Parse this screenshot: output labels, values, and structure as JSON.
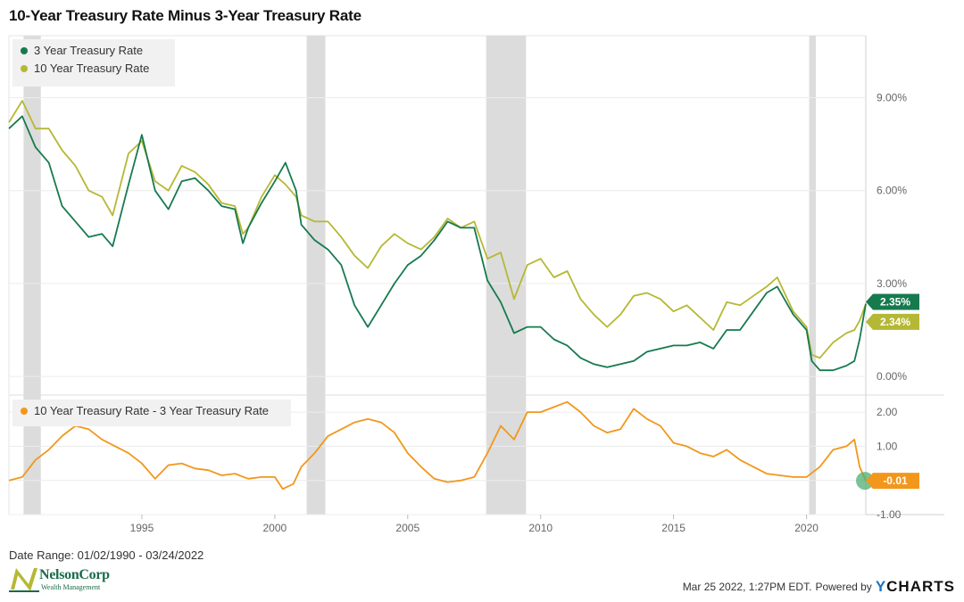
{
  "title": "10-Year Treasury Rate Minus 3-Year Treasury Rate",
  "date_range": "Date Range: 01/02/1990 - 03/24/2022",
  "footer": {
    "timestamp": "Mar 25 2022, 1:27PM EDT.",
    "powered_by": "Powered by",
    "brand_y": "Y",
    "brand_rest": "CHARTS"
  },
  "logo": {
    "name": "NelsonCorp",
    "sub": "Wealth Management"
  },
  "colors": {
    "three_year": "#167a4e",
    "ten_year": "#b5b834",
    "spread": "#f2971b",
    "recession": "#dcdcdc"
  },
  "chart_data": [
    {
      "type": "line",
      "title": "10-Year Treasury Rate Minus 3-Year Treasury Rate",
      "x_domain": [
        1990.0,
        2022.23
      ],
      "ylim": [
        -0.6,
        11.0
      ],
      "yticks": [
        {
          "value": 9,
          "label": "9.00%"
        },
        {
          "value": 6,
          "label": "6.00%"
        },
        {
          "value": 3,
          "label": "3.00%"
        },
        {
          "value": 0,
          "label": "0.00%"
        }
      ],
      "xticks": [
        {
          "value": 1995,
          "label": "1995"
        },
        {
          "value": 2000,
          "label": "2000"
        },
        {
          "value": 2005,
          "label": "2005"
        },
        {
          "value": 2010,
          "label": "2010"
        },
        {
          "value": 2015,
          "label": "2015"
        },
        {
          "value": 2020,
          "label": "2020"
        }
      ],
      "recessions": [
        [
          1990.55,
          1991.2
        ],
        [
          2001.2,
          2001.9
        ],
        [
          2007.95,
          2009.45
        ],
        [
          2020.1,
          2020.35
        ]
      ],
      "series": [
        {
          "name": "3 Year Treasury Rate",
          "key": "three",
          "last_label": "2.35%",
          "x": [
            1990.0,
            1990.5,
            1991.0,
            1991.5,
            1992.0,
            1992.5,
            1993.0,
            1993.5,
            1993.9,
            1994.5,
            1995.0,
            1995.5,
            1996.0,
            1996.5,
            1997.0,
            1997.5,
            1998.0,
            1998.5,
            1998.8,
            1999.0,
            1999.5,
            2000.0,
            2000.4,
            2000.8,
            2001.0,
            2001.5,
            2002.0,
            2002.5,
            2003.0,
            2003.5,
            2004.0,
            2004.5,
            2005.0,
            2005.5,
            2006.0,
            2006.5,
            2007.0,
            2007.5,
            2008.0,
            2008.5,
            2009.0,
            2009.5,
            2010.0,
            2010.5,
            2011.0,
            2011.5,
            2012.0,
            2012.5,
            2013.0,
            2013.5,
            2014.0,
            2014.5,
            2015.0,
            2015.5,
            2016.0,
            2016.5,
            2017.0,
            2017.5,
            2018.0,
            2018.5,
            2018.9,
            2019.5,
            2020.0,
            2020.2,
            2020.5,
            2021.0,
            2021.5,
            2021.8,
            2022.0,
            2022.23
          ],
          "values": [
            8.0,
            8.4,
            7.4,
            6.9,
            5.5,
            5.0,
            4.5,
            4.6,
            4.2,
            6.2,
            7.8,
            6.0,
            5.4,
            6.3,
            6.4,
            6.0,
            5.5,
            5.4,
            4.3,
            4.8,
            5.6,
            6.3,
            6.9,
            6.0,
            4.9,
            4.4,
            4.1,
            3.6,
            2.3,
            1.6,
            2.3,
            3.0,
            3.6,
            3.9,
            4.4,
            5.0,
            4.8,
            4.8,
            3.1,
            2.4,
            1.4,
            1.6,
            1.6,
            1.2,
            1.0,
            0.6,
            0.4,
            0.3,
            0.4,
            0.5,
            0.8,
            0.9,
            1.0,
            1.0,
            1.1,
            0.9,
            1.5,
            1.5,
            2.1,
            2.7,
            2.9,
            2.0,
            1.5,
            0.5,
            0.2,
            0.2,
            0.35,
            0.5,
            1.2,
            2.35
          ]
        },
        {
          "name": "10 Year Treasury Rate",
          "key": "ten",
          "last_label": "2.34%",
          "x": [
            1990.0,
            1990.5,
            1991.0,
            1991.5,
            1992.0,
            1992.5,
            1993.0,
            1993.5,
            1993.9,
            1994.5,
            1995.0,
            1995.5,
            1996.0,
            1996.5,
            1997.0,
            1997.5,
            1998.0,
            1998.5,
            1998.8,
            1999.0,
            1999.5,
            2000.0,
            2000.4,
            2000.8,
            2001.0,
            2001.5,
            2002.0,
            2002.5,
            2003.0,
            2003.5,
            2004.0,
            2004.5,
            2005.0,
            2005.5,
            2006.0,
            2006.5,
            2007.0,
            2007.5,
            2008.0,
            2008.5,
            2009.0,
            2009.5,
            2010.0,
            2010.5,
            2011.0,
            2011.5,
            2012.0,
            2012.5,
            2013.0,
            2013.5,
            2014.0,
            2014.5,
            2015.0,
            2015.5,
            2016.0,
            2016.5,
            2017.0,
            2017.5,
            2018.0,
            2018.5,
            2018.9,
            2019.5,
            2020.0,
            2020.2,
            2020.5,
            2021.0,
            2021.5,
            2021.8,
            2022.0,
            2022.23
          ],
          "values": [
            8.2,
            8.9,
            8.0,
            8.0,
            7.3,
            6.8,
            6.0,
            5.8,
            5.2,
            7.2,
            7.6,
            6.3,
            6.0,
            6.8,
            6.6,
            6.2,
            5.6,
            5.5,
            4.6,
            4.8,
            5.8,
            6.5,
            6.2,
            5.8,
            5.2,
            5.0,
            5.0,
            4.5,
            3.9,
            3.5,
            4.2,
            4.6,
            4.3,
            4.1,
            4.5,
            5.1,
            4.8,
            5.0,
            3.8,
            4.0,
            2.5,
            3.6,
            3.8,
            3.2,
            3.4,
            2.5,
            2.0,
            1.6,
            2.0,
            2.6,
            2.7,
            2.5,
            2.1,
            2.3,
            1.9,
            1.5,
            2.4,
            2.3,
            2.6,
            2.9,
            3.2,
            2.1,
            1.6,
            0.7,
            0.6,
            1.1,
            1.4,
            1.5,
            1.8,
            2.34
          ]
        }
      ]
    },
    {
      "type": "line",
      "title": "10 Year Treasury Rate - 3 Year Treasury Rate",
      "x_domain": [
        1990.0,
        2022.23
      ],
      "ylim": [
        -1.0,
        2.5
      ],
      "yticks": [
        {
          "value": 2,
          "label": "2.00"
        },
        {
          "value": 1,
          "label": "1.00"
        },
        {
          "value": 0,
          "label": "0.00"
        },
        {
          "value": -1,
          "label": "-1.00"
        }
      ],
      "series": [
        {
          "name": "10 Year Treasury Rate - 3 Year Treasury Rate",
          "key": "spread",
          "last_label": "-0.01",
          "x": [
            1990.0,
            1990.5,
            1991.0,
            1991.5,
            1992.0,
            1992.5,
            1993.0,
            1993.5,
            1994.0,
            1994.5,
            1995.0,
            1995.5,
            1996.0,
            1996.5,
            1997.0,
            1997.5,
            1998.0,
            1998.5,
            1999.0,
            1999.5,
            2000.0,
            2000.3,
            2000.7,
            2001.0,
            2001.5,
            2002.0,
            2002.5,
            2003.0,
            2003.5,
            2004.0,
            2004.5,
            2005.0,
            2005.5,
            2006.0,
            2006.5,
            2007.0,
            2007.5,
            2008.0,
            2008.5,
            2009.0,
            2009.5,
            2010.0,
            2010.5,
            2011.0,
            2011.5,
            2012.0,
            2012.5,
            2013.0,
            2013.5,
            2014.0,
            2014.5,
            2015.0,
            2015.5,
            2016.0,
            2016.5,
            2017.0,
            2017.5,
            2018.0,
            2018.5,
            2019.0,
            2019.5,
            2020.0,
            2020.5,
            2021.0,
            2021.5,
            2021.8,
            2022.0,
            2022.23
          ],
          "values": [
            0.0,
            0.1,
            0.6,
            0.9,
            1.3,
            1.6,
            1.5,
            1.2,
            1.0,
            0.8,
            0.5,
            0.05,
            0.45,
            0.5,
            0.35,
            0.3,
            0.15,
            0.2,
            0.05,
            0.1,
            0.1,
            -0.25,
            -0.1,
            0.4,
            0.8,
            1.3,
            1.5,
            1.7,
            1.8,
            1.7,
            1.4,
            0.8,
            0.4,
            0.05,
            -0.05,
            0.0,
            0.1,
            0.8,
            1.6,
            1.2,
            2.0,
            2.0,
            2.15,
            2.3,
            2.0,
            1.6,
            1.4,
            1.5,
            2.1,
            1.8,
            1.6,
            1.1,
            1.0,
            0.8,
            0.7,
            0.9,
            0.6,
            0.4,
            0.2,
            0.15,
            0.1,
            0.1,
            0.4,
            0.9,
            1.0,
            1.2,
            0.4,
            -0.01
          ]
        }
      ]
    }
  ]
}
